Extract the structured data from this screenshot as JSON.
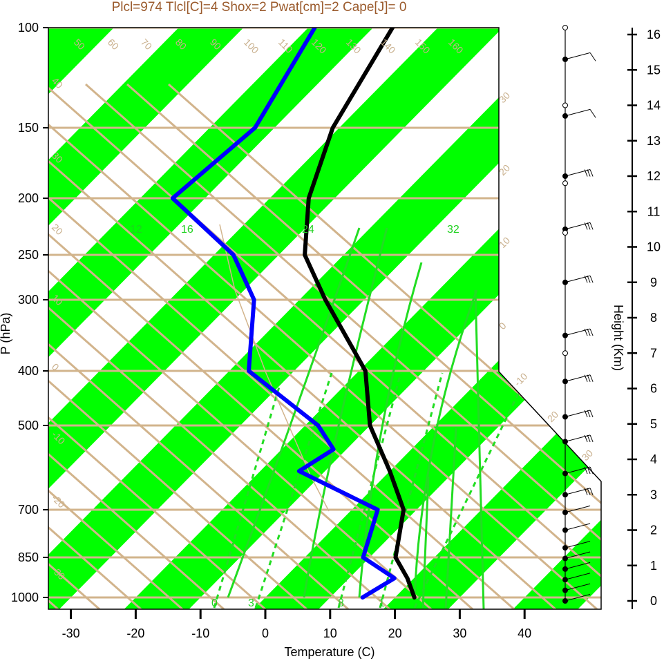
{
  "title": "Plcl=974 Tlcl[C]=4 Shox=2 Pwat[cm]=2 Cape[J]= 0",
  "colors": {
    "band": "#00ff00",
    "isoline": "#d2b48c",
    "temperature": "#000000",
    "dewpoint": "#0000ff",
    "adiabat": "#22dd22",
    "title": "#9a5a2c"
  },
  "chart_data": {
    "type": "line",
    "subtype": "skew-t",
    "title": "Plcl=974 Tlcl[C]=4 Shox=2 Pwat[cm]=2 Cape[J]= 0",
    "xlabel": "Temperature (C)",
    "ylabel": "P (hPa)",
    "y2label": "Height (Km)",
    "xticks": [
      -30,
      -20,
      -10,
      0,
      10,
      20,
      30,
      40
    ],
    "yticks": [
      100,
      150,
      200,
      250,
      300,
      400,
      500,
      700,
      850,
      1000
    ],
    "y2ticks": [
      0,
      1,
      2,
      3,
      4,
      5,
      6,
      7,
      8,
      9,
      10,
      11,
      12,
      13,
      14,
      15,
      16
    ],
    "series": [
      {
        "name": "Temperature",
        "points": [
          [
            1000,
            23
          ],
          [
            925,
            19
          ],
          [
            850,
            14
          ],
          [
            700,
            8
          ],
          [
            600,
            0
          ],
          [
            500,
            -10
          ],
          [
            400,
            -19
          ],
          [
            300,
            -36
          ],
          [
            250,
            -46
          ],
          [
            200,
            -54
          ],
          [
            150,
            -61
          ],
          [
            100,
            -67
          ]
        ]
      },
      {
        "name": "Dewpoint",
        "points": [
          [
            1000,
            15
          ],
          [
            925,
            17
          ],
          [
            850,
            9
          ],
          [
            700,
            4
          ],
          [
            600,
            -14
          ],
          [
            550,
            -12
          ],
          [
            500,
            -18
          ],
          [
            400,
            -37
          ],
          [
            300,
            -47
          ],
          [
            250,
            -57
          ],
          [
            200,
            -75
          ],
          [
            150,
            -73
          ],
          [
            100,
            -79
          ]
        ]
      }
    ],
    "isotherm_labels": [
      "50",
      "60",
      "70",
      "80",
      "90",
      "100",
      "110",
      "120",
      "130",
      "140",
      "150",
      "160"
    ],
    "left_labels": [
      "40",
      "30",
      "20",
      "10",
      "0",
      "-10",
      "-20",
      "-30"
    ],
    "right_labels": [
      "30",
      "20",
      "10",
      "0",
      "-10",
      "20",
      "30"
    ],
    "mixing_labels_top": [
      "12",
      "16",
      "24",
      "32"
    ],
    "mixing_labels_bottom": [
      "0",
      "3",
      "8",
      "1"
    ],
    "wind_heights_km": [
      0,
      0.3,
      0.6,
      0.9,
      1.2,
      1.5,
      2,
      2.5,
      3,
      3.6,
      4.5,
      5.2,
      6.2,
      7.5,
      9,
      10.5,
      12,
      13.7,
      15.3
    ]
  }
}
